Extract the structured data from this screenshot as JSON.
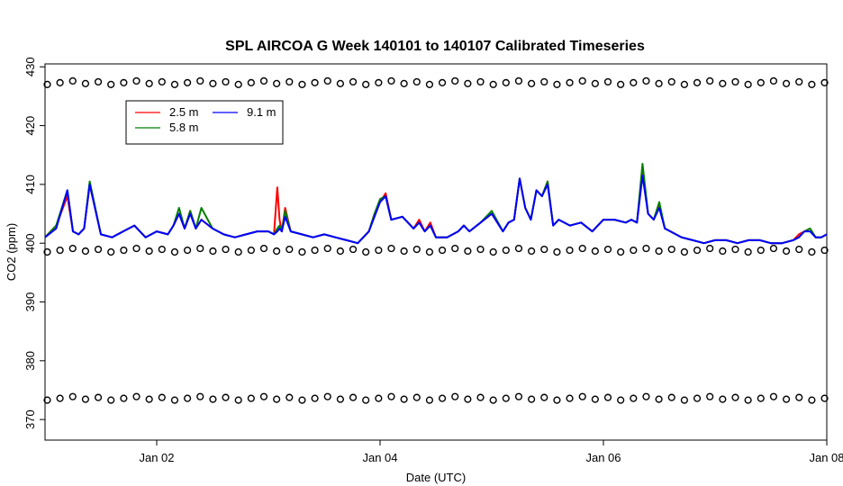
{
  "chart_data": {
    "type": "line",
    "title": "SPL AIRCOA G  Week 140101 to 140107  Calibrated Timeseries",
    "xlabel": "Date (UTC)",
    "ylabel": "CO2 (ppm)",
    "xlim": [
      1.0,
      8.0
    ],
    "ylim": [
      366.5,
      430.5
    ],
    "x_unit": "days into January 2014",
    "x_ticks": [
      {
        "value": 2,
        "label": "Jan 02"
      },
      {
        "value": 4,
        "label": "Jan 04"
      },
      {
        "value": 6,
        "label": "Jan 06"
      },
      {
        "value": 8,
        "label": "Jan 08"
      }
    ],
    "y_ticks": [
      370,
      380,
      390,
      400,
      410,
      420,
      430
    ],
    "grid": false,
    "legend": {
      "position": "top-left",
      "columns": 2
    },
    "series": [
      {
        "name": "2.5 m",
        "color": "#ff0000",
        "x": [
          1.0,
          1.1,
          1.2,
          1.25,
          1.3,
          1.35,
          1.4,
          1.5,
          1.6,
          1.7,
          1.8,
          1.9,
          2.0,
          2.1,
          2.15,
          2.2,
          2.25,
          2.3,
          2.35,
          2.4,
          2.5,
          2.6,
          2.7,
          2.8,
          2.9,
          3.0,
          3.05,
          3.08,
          3.1,
          3.12,
          3.15,
          3.2,
          3.3,
          3.4,
          3.5,
          3.6,
          3.7,
          3.8,
          3.85,
          3.9,
          3.95,
          4.0,
          4.05,
          4.1,
          4.2,
          4.3,
          4.35,
          4.4,
          4.45,
          4.5,
          4.6,
          4.7,
          4.75,
          4.8,
          4.9,
          5.0,
          5.1,
          5.15,
          5.2,
          5.25,
          5.3,
          5.35,
          5.4,
          5.45,
          5.5,
          5.55,
          5.6,
          5.7,
          5.8,
          5.9,
          6.0,
          6.1,
          6.2,
          6.25,
          6.3,
          6.35,
          6.4,
          6.45,
          6.5,
          6.55,
          6.6,
          6.7,
          6.8,
          6.9,
          7.0,
          7.1,
          7.2,
          7.3,
          7.4,
          7.5,
          7.6,
          7.7,
          7.75,
          7.8,
          7.85,
          7.9,
          7.95,
          8.0
        ],
        "y": [
          401.0,
          403.0,
          408.0,
          402.0,
          401.5,
          402.5,
          410.0,
          401.5,
          401.0,
          402.0,
          403.0,
          401.0,
          402.0,
          401.5,
          403.0,
          405.0,
          402.5,
          405.5,
          402.5,
          404.0,
          402.5,
          401.5,
          401.0,
          401.5,
          402.0,
          402.0,
          401.5,
          409.5,
          404.0,
          402.0,
          406.0,
          402.0,
          401.5,
          401.0,
          401.5,
          401.0,
          400.5,
          400.0,
          401.0,
          402.0,
          405.0,
          407.0,
          408.5,
          404.0,
          404.5,
          402.5,
          404.0,
          402.0,
          403.5,
          401.0,
          401.0,
          402.0,
          403.0,
          402.0,
          403.5,
          405.0,
          402.0,
          403.5,
          404.0,
          411.0,
          406.0,
          404.0,
          409.0,
          408.0,
          410.5,
          403.0,
          404.0,
          403.0,
          403.5,
          402.0,
          404.0,
          404.0,
          403.5,
          404.0,
          403.5,
          412.0,
          405.0,
          404.0,
          406.5,
          402.5,
          402.0,
          401.0,
          400.5,
          400.0,
          400.5,
          400.5,
          400.0,
          400.5,
          400.5,
          400.0,
          400.0,
          400.5,
          401.5,
          402.0,
          402.5,
          401.0,
          401.0,
          401.5
        ]
      },
      {
        "name": "5.8 m",
        "color": "#008000",
        "x": [
          1.0,
          1.1,
          1.2,
          1.25,
          1.3,
          1.35,
          1.4,
          1.5,
          1.6,
          1.7,
          1.8,
          1.9,
          2.0,
          2.1,
          2.15,
          2.2,
          2.25,
          2.3,
          2.35,
          2.4,
          2.5,
          2.6,
          2.7,
          2.8,
          2.9,
          3.0,
          3.05,
          3.08,
          3.1,
          3.12,
          3.15,
          3.2,
          3.3,
          3.4,
          3.5,
          3.6,
          3.7,
          3.8,
          3.85,
          3.9,
          3.95,
          4.0,
          4.05,
          4.1,
          4.2,
          4.3,
          4.35,
          4.4,
          4.45,
          4.5,
          4.6,
          4.7,
          4.75,
          4.8,
          4.9,
          5.0,
          5.1,
          5.15,
          5.2,
          5.25,
          5.3,
          5.35,
          5.4,
          5.45,
          5.5,
          5.55,
          5.6,
          5.7,
          5.8,
          5.9,
          6.0,
          6.1,
          6.2,
          6.25,
          6.3,
          6.35,
          6.4,
          6.45,
          6.5,
          6.55,
          6.6,
          6.7,
          6.8,
          6.9,
          7.0,
          7.1,
          7.2,
          7.3,
          7.4,
          7.5,
          7.6,
          7.7,
          7.75,
          7.8,
          7.85,
          7.9,
          7.95,
          8.0
        ],
        "y": [
          401.0,
          403.0,
          409.0,
          402.0,
          401.5,
          402.5,
          410.5,
          401.5,
          401.0,
          402.0,
          403.0,
          401.0,
          402.0,
          401.5,
          403.0,
          406.0,
          402.5,
          405.5,
          402.5,
          406.0,
          402.5,
          401.5,
          401.0,
          401.5,
          402.0,
          402.0,
          401.5,
          402.5,
          403.0,
          402.0,
          405.5,
          402.0,
          401.5,
          401.0,
          401.5,
          401.0,
          400.5,
          400.0,
          401.0,
          402.0,
          405.0,
          407.5,
          408.0,
          404.0,
          404.5,
          402.5,
          403.5,
          402.0,
          403.0,
          401.0,
          401.0,
          402.0,
          403.0,
          402.0,
          403.5,
          405.5,
          402.0,
          403.5,
          404.0,
          411.0,
          406.0,
          404.0,
          409.0,
          408.0,
          410.5,
          403.0,
          404.0,
          403.0,
          403.5,
          402.0,
          404.0,
          404.0,
          403.5,
          404.0,
          403.5,
          413.5,
          405.0,
          404.0,
          407.0,
          402.5,
          402.0,
          401.0,
          400.5,
          400.0,
          400.5,
          400.5,
          400.0,
          400.5,
          400.5,
          400.0,
          400.0,
          400.5,
          401.0,
          402.0,
          402.5,
          401.0,
          401.0,
          401.5
        ]
      },
      {
        "name": "9.1 m",
        "color": "#0000ff",
        "x": [
          1.0,
          1.1,
          1.2,
          1.25,
          1.3,
          1.35,
          1.4,
          1.5,
          1.6,
          1.7,
          1.8,
          1.9,
          2.0,
          2.1,
          2.15,
          2.2,
          2.25,
          2.3,
          2.35,
          2.4,
          2.5,
          2.6,
          2.7,
          2.8,
          2.9,
          3.0,
          3.05,
          3.08,
          3.1,
          3.12,
          3.15,
          3.2,
          3.3,
          3.4,
          3.5,
          3.6,
          3.7,
          3.8,
          3.85,
          3.9,
          3.95,
          4.0,
          4.05,
          4.1,
          4.2,
          4.3,
          4.35,
          4.4,
          4.45,
          4.5,
          4.6,
          4.7,
          4.75,
          4.8,
          4.9,
          5.0,
          5.1,
          5.15,
          5.2,
          5.25,
          5.3,
          5.35,
          5.4,
          5.45,
          5.5,
          5.55,
          5.6,
          5.7,
          5.8,
          5.9,
          6.0,
          6.1,
          6.2,
          6.25,
          6.3,
          6.35,
          6.4,
          6.45,
          6.5,
          6.55,
          6.6,
          6.7,
          6.8,
          6.9,
          7.0,
          7.1,
          7.2,
          7.3,
          7.4,
          7.5,
          7.6,
          7.7,
          7.75,
          7.8,
          7.85,
          7.9,
          7.95,
          8.0
        ],
        "y": [
          401.0,
          402.5,
          409.0,
          402.0,
          401.5,
          402.5,
          410.0,
          401.5,
          401.0,
          402.0,
          403.0,
          401.0,
          402.0,
          401.5,
          403.0,
          405.0,
          402.5,
          405.0,
          402.5,
          404.0,
          402.5,
          401.5,
          401.0,
          401.5,
          402.0,
          402.0,
          401.5,
          402.0,
          402.5,
          402.0,
          404.5,
          402.0,
          401.5,
          401.0,
          401.5,
          401.0,
          400.5,
          400.0,
          401.0,
          402.0,
          404.5,
          407.0,
          408.0,
          404.0,
          404.5,
          402.5,
          403.5,
          402.0,
          403.0,
          401.0,
          401.0,
          402.0,
          403.0,
          402.0,
          403.5,
          405.0,
          402.0,
          403.5,
          404.0,
          411.0,
          406.0,
          404.0,
          409.0,
          408.0,
          410.0,
          403.0,
          404.0,
          403.0,
          403.5,
          402.0,
          404.0,
          404.0,
          403.5,
          404.0,
          403.5,
          411.5,
          405.0,
          404.0,
          406.0,
          402.5,
          402.0,
          401.0,
          400.5,
          400.0,
          400.5,
          400.5,
          400.0,
          400.5,
          400.5,
          400.0,
          400.0,
          400.5,
          401.0,
          402.0,
          402.0,
          401.0,
          401.0,
          401.5
        ]
      }
    ],
    "reference_markers": [
      {
        "label": "o",
        "y": 427.3,
        "x_start": 1.02,
        "x_end": 7.98,
        "count": 62
      },
      {
        "label": "o",
        "y": 398.8,
        "x_start": 1.02,
        "x_end": 7.98,
        "count": 62
      },
      {
        "label": "o",
        "y": 373.6,
        "x_start": 1.02,
        "x_end": 7.98,
        "count": 62
      }
    ]
  }
}
